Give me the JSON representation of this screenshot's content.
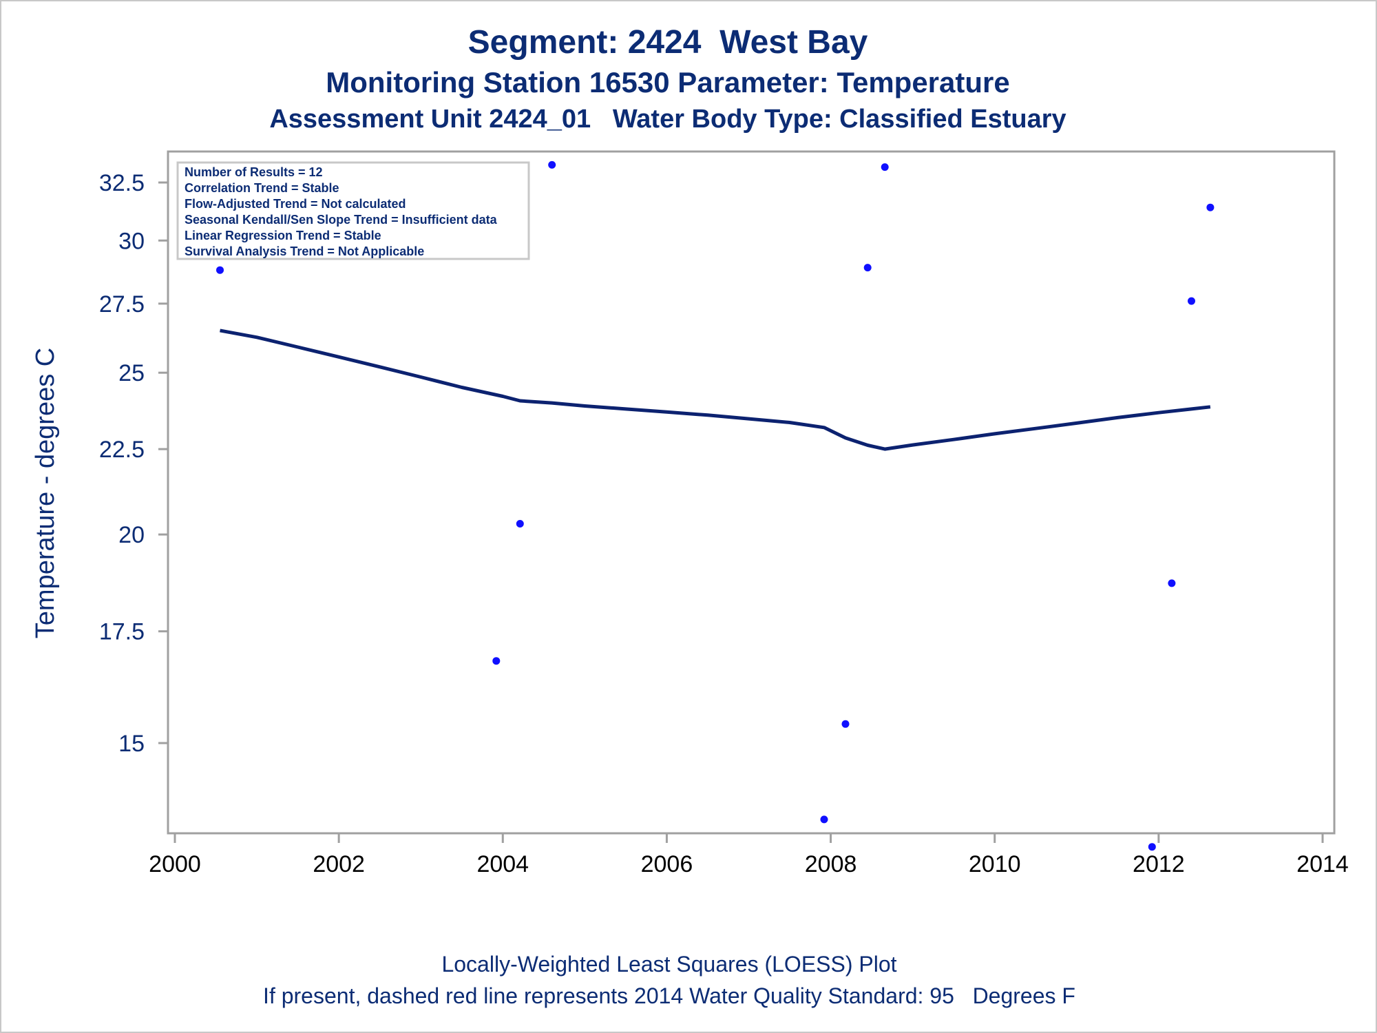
{
  "titles": {
    "line1": "Segment: 2424  West Bay",
    "line2": "Monitoring Station 16530 Parameter: Temperature",
    "line3": "Assessment Unit 2424_01   Water Body Type: Classified Estuary"
  },
  "footnotes": {
    "line1": "Locally-Weighted Least Squares (LOESS) Plot",
    "line2": "If present, dashed red line represents 2014 Water Quality Standard: 95   Degrees F"
  },
  "stats_box": {
    "lines": [
      "Number of Results = 12",
      "Correlation Trend = Stable",
      "Flow-Adjusted Trend = Not calculated",
      "Seasonal Kendall/Sen Slope Trend = Insufficient data",
      "Linear Regression Trend = Stable",
      "Survival Analysis Trend = Not Applicable"
    ]
  },
  "colors": {
    "text": "#0c2c74",
    "points": "#1010ff",
    "loess_line": "#0c2270",
    "axis": "#a0a0a0"
  },
  "chart_data": {
    "type": "scatter",
    "title": "Segment: 2424  West Bay",
    "xlabel": "",
    "ylabel": "Temperature - degrees C",
    "xlim": [
      2000,
      2014
    ],
    "ylim": [
      12.8,
      33.6
    ],
    "y_scale": "log",
    "xticks": [
      "2000",
      "2002",
      "2004",
      "2006",
      "2008",
      "2010",
      "2012",
      "2014"
    ],
    "yticks": [
      "15",
      "17.5",
      "20",
      "22.5",
      "25",
      "27.5",
      "30",
      "32.5"
    ],
    "grid": false,
    "legend": "none",
    "series": [
      {
        "kind": "points",
        "x": [
          2000.55,
          2003.92,
          2004.21,
          2004.6,
          2007.92,
          2008.18,
          2008.45,
          2008.66,
          2011.92,
          2012.16,
          2012.4,
          2012.63
        ],
        "y": [
          28.8,
          16.8,
          20.3,
          33.3,
          13.5,
          15.4,
          28.9,
          33.2,
          13.0,
          18.7,
          27.6,
          31.4
        ]
      },
      {
        "kind": "loess",
        "x": [
          2000.55,
          2001.0,
          2001.5,
          2002.0,
          2002.5,
          2003.0,
          2003.5,
          2004.0,
          2004.21,
          2004.6,
          2005.0,
          2005.5,
          2006.0,
          2006.5,
          2007.0,
          2007.5,
          2007.92,
          2008.18,
          2008.45,
          2008.66,
          2009.0,
          2009.5,
          2010.0,
          2010.5,
          2011.0,
          2011.5,
          2012.0,
          2012.4,
          2012.63
        ],
        "y": [
          26.5,
          26.25,
          25.9,
          25.55,
          25.2,
          24.85,
          24.5,
          24.2,
          24.05,
          23.98,
          23.88,
          23.78,
          23.68,
          23.58,
          23.46,
          23.34,
          23.18,
          22.85,
          22.62,
          22.5,
          22.63,
          22.8,
          22.98,
          23.15,
          23.32,
          23.5,
          23.66,
          23.78,
          23.85
        ]
      }
    ]
  }
}
